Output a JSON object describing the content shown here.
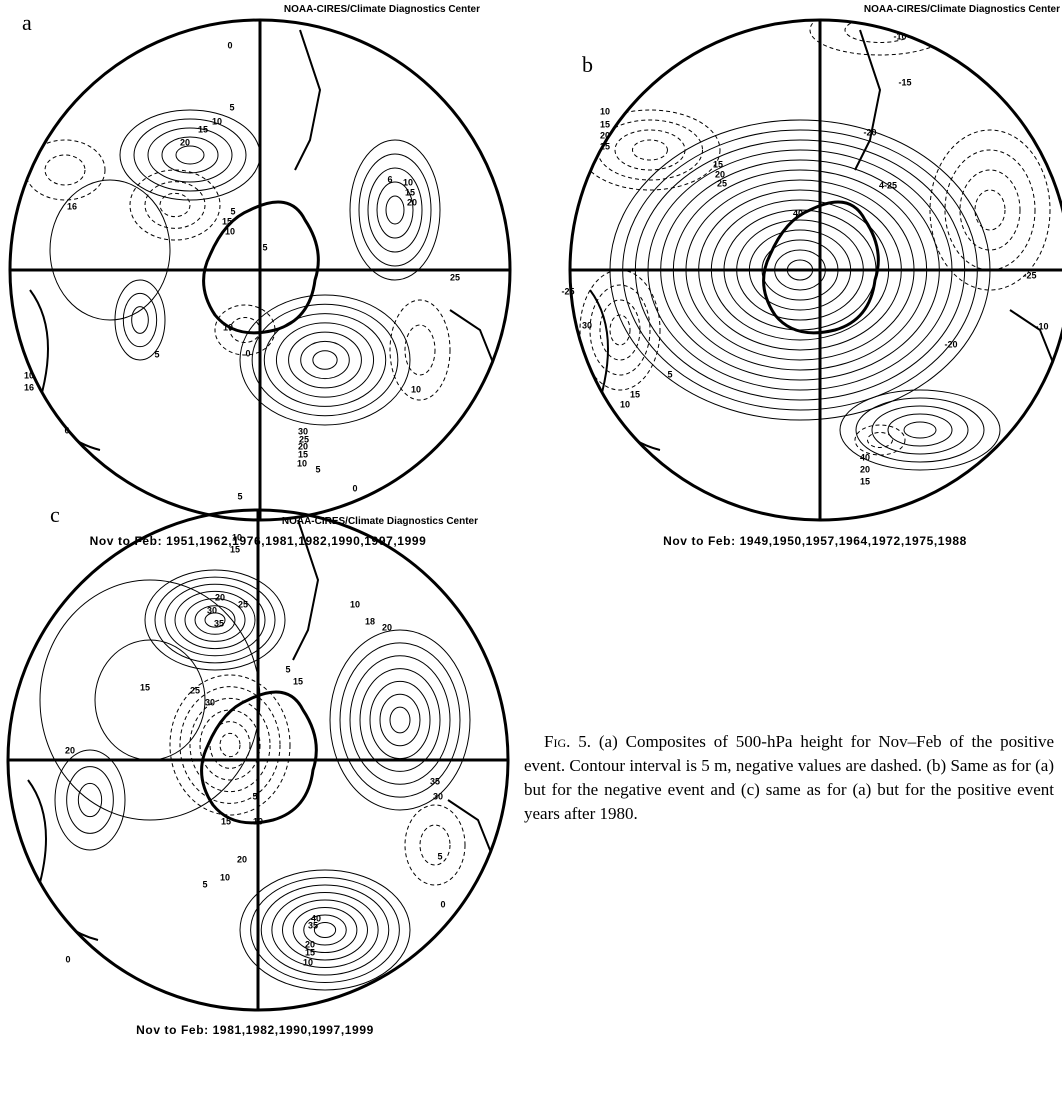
{
  "panels": [
    {
      "label": "a",
      "credit": "NOAA-CIRES/Climate Diagnostics Center",
      "caption": "Nov to Feb: 1951,1962,1976,1981,1982,1990,1997,1999",
      "contour_labels": [
        "0",
        "5",
        "10",
        "15",
        "20",
        "16",
        "5",
        "15",
        "6",
        "10",
        "15",
        "20",
        "25",
        "5",
        "10",
        "0",
        "10",
        "5",
        "10",
        "16",
        "0",
        "30",
        "25",
        "20",
        "15",
        "10",
        "5",
        "0",
        "5",
        "10"
      ]
    },
    {
      "label": "b",
      "credit": "NOAA-CIRES/Climate Diagnostics Center",
      "caption": "Nov to Feb: 1949,1950,1957,1964,1972,1975,1988",
      "contour_labels": [
        "-10",
        "-15",
        "-20",
        "10",
        "15",
        "20",
        "25",
        "15",
        "20",
        "25",
        "4-25",
        "40",
        "-25",
        "30",
        "-20",
        "-25",
        "15",
        "10",
        "5",
        "40",
        "20",
        "15",
        "-10"
      ]
    },
    {
      "label": "c",
      "credit": "NOAA-CIRES/Climate Diagnostics Center",
      "caption": "Nov to Feb: 1981,1982,1990,1997,1999",
      "contour_labels": [
        "10",
        "15",
        "30",
        "35",
        "25",
        "20",
        "15",
        "25",
        "30",
        "20",
        "5",
        "15",
        "10",
        "18",
        "20",
        "35",
        "30",
        "5",
        "15",
        "10",
        "20",
        "10",
        "5",
        "40",
        "35",
        "20",
        "15",
        "10",
        "0",
        "5",
        "0"
      ]
    }
  ],
  "figure_caption": {
    "label": "Fig. 5.",
    "text": "(a) Composites of 500-hPa height for Nov–Feb of the positive event. Contour interval is 5 m, negative values are dashed. (b) Same as for (a) but for the negative event and (c) same as for (a) but for the positive event years after 1980."
  }
}
